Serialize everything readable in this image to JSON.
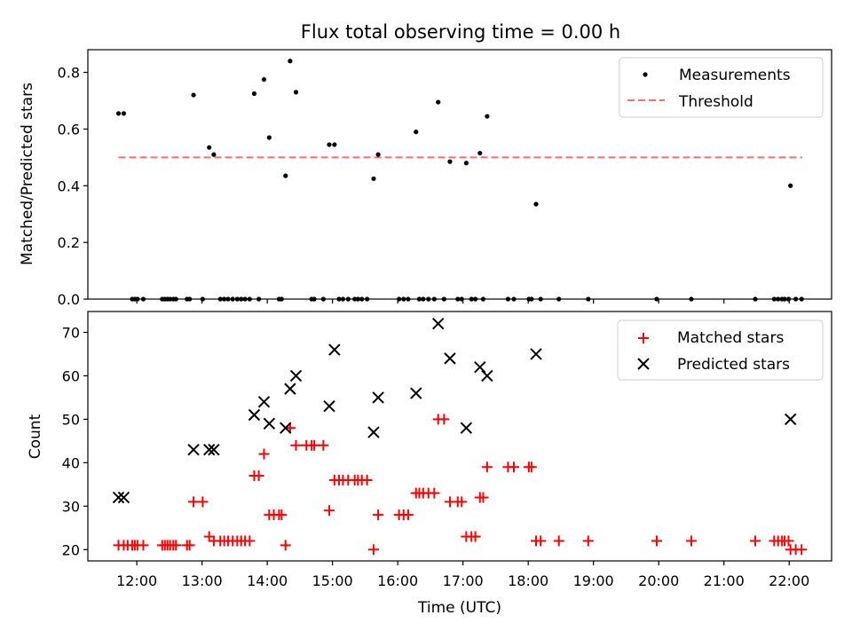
{
  "chart_data": [
    {
      "type": "scatter",
      "title": "Flux total observing time = 0.00 h",
      "xlabel": "",
      "ylabel": "Matched/Predicted stars",
      "xlim": [
        11.25,
        22.65
      ],
      "ylim": [
        0,
        0.88
      ],
      "yticks": [
        "0.0",
        "0.2",
        "0.4",
        "0.6",
        "0.8"
      ],
      "legend_position": "top-right",
      "grid": false,
      "series": [
        {
          "name": "Measurements",
          "color": "#000000",
          "marker": "dot",
          "x": [
            11.72,
            11.8,
            12.87,
            13.11,
            13.18,
            13.8,
            13.95,
            14.03,
            14.28,
            14.35,
            14.44,
            14.95,
            15.03,
            15.63,
            15.7,
            16.28,
            16.62,
            16.8,
            17.05,
            17.26,
            17.37,
            18.12,
            22.02,
            11.93,
            11.97,
            12.01,
            12.1,
            12.39,
            12.43,
            12.47,
            12.51,
            12.56,
            12.6,
            12.77,
            12.81,
            13.01,
            13.28,
            13.34,
            13.4,
            13.47,
            13.54,
            13.6,
            13.66,
            13.73,
            13.87,
            14.18,
            14.22,
            14.68,
            14.72,
            14.86,
            15.1,
            15.16,
            15.24,
            15.34,
            15.39,
            15.45,
            15.53,
            16.02,
            16.09,
            16.16,
            16.33,
            16.39,
            16.47,
            16.56,
            16.71,
            16.92,
            16.98,
            17.13,
            17.19,
            17.31,
            17.69,
            17.78,
            18.01,
            18.05,
            18.19,
            18.47,
            18.92,
            19.97,
            20.5,
            21.48,
            21.77,
            21.83,
            21.89,
            21.93,
            21.99,
            22.1,
            22.19
          ],
          "y": [
            0.655,
            0.655,
            0.72,
            0.535,
            0.51,
            0.725,
            0.775,
            0.57,
            0.435,
            0.84,
            0.73,
            0.545,
            0.545,
            0.425,
            0.51,
            0.59,
            0.695,
            0.485,
            0.48,
            0.515,
            0.645,
            0.335,
            0.4,
            0,
            0,
            0,
            0,
            0,
            0,
            0,
            0,
            0,
            0,
            0,
            0,
            0,
            0,
            0,
            0,
            0,
            0,
            0,
            0,
            0,
            0,
            0,
            0,
            0,
            0,
            0,
            0,
            0,
            0,
            0,
            0,
            0,
            0,
            0,
            0,
            0,
            0,
            0,
            0,
            0,
            0,
            0,
            0,
            0,
            0,
            0,
            0,
            0,
            0,
            0,
            0,
            0,
            0,
            0,
            0,
            0,
            0,
            0,
            0,
            0,
            0,
            0,
            0
          ]
        },
        {
          "name": "Threshold",
          "color": "#ff6b6b",
          "style": "dashed",
          "x": [
            11.72,
            22.2
          ],
          "y": [
            0.5,
            0.5
          ]
        }
      ]
    },
    {
      "type": "scatter",
      "title": "",
      "xlabel": "Time (UTC)",
      "ylabel": "Count",
      "xlim": [
        11.25,
        22.65
      ],
      "ylim": [
        17.4,
        74.8
      ],
      "yticks": [
        "20",
        "30",
        "40",
        "50",
        "60",
        "70"
      ],
      "xticks": [
        "12:00",
        "13:00",
        "14:00",
        "15:00",
        "16:00",
        "17:00",
        "18:00",
        "19:00",
        "20:00",
        "21:00",
        "22:00"
      ],
      "xtick_values": [
        12,
        13,
        14,
        15,
        16,
        17,
        18,
        19,
        20,
        21,
        22
      ],
      "legend_position": "top-right",
      "grid": false,
      "series": [
        {
          "name": "Matched stars",
          "color": "#ff0000",
          "marker": "plus",
          "x": [
            11.72,
            11.8,
            11.86,
            11.93,
            11.97,
            12.01,
            12.1,
            12.39,
            12.43,
            12.47,
            12.51,
            12.56,
            12.6,
            12.77,
            12.81,
            12.87,
            13.01,
            13.11,
            13.18,
            13.28,
            13.34,
            13.4,
            13.47,
            13.54,
            13.6,
            13.66,
            13.73,
            13.8,
            13.87,
            13.95,
            14.03,
            14.1,
            14.18,
            14.22,
            14.28,
            14.35,
            14.44,
            14.6,
            14.68,
            14.72,
            14.86,
            14.95,
            15.03,
            15.1,
            15.16,
            15.24,
            15.34,
            15.39,
            15.45,
            15.53,
            15.63,
            15.7,
            16.02,
            16.09,
            16.16,
            16.28,
            16.33,
            16.39,
            16.47,
            16.56,
            16.62,
            16.71,
            16.8,
            16.92,
            16.98,
            17.05,
            17.13,
            17.19,
            17.26,
            17.31,
            17.37,
            17.69,
            17.78,
            18.01,
            18.05,
            18.12,
            18.19,
            18.47,
            18.92,
            19.97,
            20.5,
            21.48,
            21.77,
            21.83,
            21.89,
            21.93,
            21.99,
            22.02,
            22.1,
            22.19
          ],
          "y": [
            21,
            21,
            21,
            21,
            21,
            21,
            21,
            21,
            21,
            21,
            21,
            21,
            21,
            21,
            21,
            31,
            31,
            23,
            22,
            22,
            22,
            22,
            22,
            22,
            22,
            22,
            22,
            37,
            37,
            42,
            28,
            28,
            28,
            28,
            21,
            48,
            44,
            44,
            44,
            44,
            44,
            29,
            36,
            36,
            36,
            36,
            36,
            36,
            36,
            36,
            20,
            28,
            28,
            28,
            28,
            33,
            33,
            33,
            33,
            33,
            50,
            50,
            31,
            31,
            31,
            23,
            23,
            23,
            32,
            32,
            39,
            39,
            39,
            39,
            39,
            22,
            22,
            22,
            22,
            22,
            22,
            22,
            22,
            22,
            22,
            22,
            22,
            20,
            20,
            20
          ]
        },
        {
          "name": "Predicted stars",
          "color": "#000000",
          "marker": "cross",
          "x": [
            11.72,
            11.8,
            12.87,
            13.11,
            13.18,
            13.8,
            13.95,
            14.03,
            14.28,
            14.35,
            14.44,
            14.95,
            15.03,
            15.63,
            15.7,
            16.28,
            16.62,
            16.8,
            17.05,
            17.26,
            17.37,
            18.12,
            22.02
          ],
          "y": [
            32,
            32,
            43,
            43,
            43,
            51,
            54,
            49,
            48,
            57,
            60,
            53,
            66,
            47,
            55,
            56,
            72,
            64,
            48,
            62,
            60,
            65,
            50
          ]
        }
      ]
    }
  ]
}
